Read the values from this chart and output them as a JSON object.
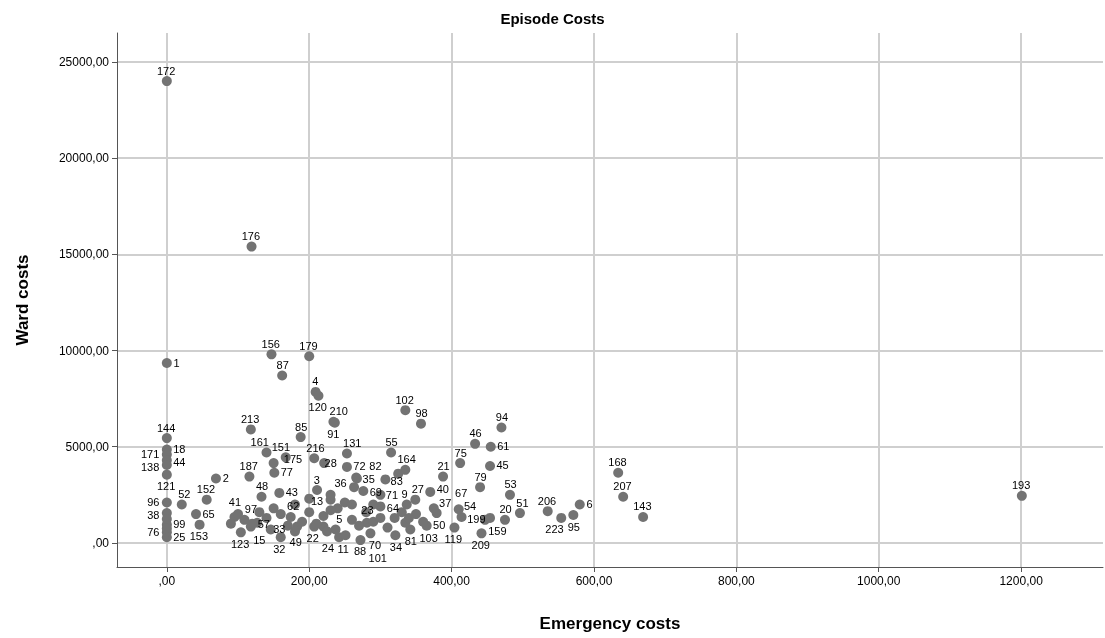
{
  "chart_data": {
    "type": "scatter",
    "title": "Episode Costs",
    "xlabel": "Emergency costs",
    "ylabel": "Ward costs",
    "xlim": [
      -70,
      1315
    ],
    "ylim": [
      -1250,
      26500
    ],
    "xticks": [
      {
        "value": 0,
        "label": ",00"
      },
      {
        "value": 200,
        "label": "200,00"
      },
      {
        "value": 400,
        "label": "400,00"
      },
      {
        "value": 600,
        "label": "600,00"
      },
      {
        "value": 800,
        "label": "800,00"
      },
      {
        "value": 1000,
        "label": "1000,00"
      },
      {
        "value": 1200,
        "label": "1200,00"
      }
    ],
    "yticks": [
      {
        "value": 0,
        "label": ",00"
      },
      {
        "value": 5000,
        "label": "5000,00"
      },
      {
        "value": 10000,
        "label": "10000,00"
      },
      {
        "value": 15000,
        "label": "15000,00"
      },
      {
        "value": 20000,
        "label": "20000,00"
      },
      {
        "value": 25000,
        "label": "25000,00"
      }
    ],
    "grid": true,
    "marker": "circle",
    "series": [
      {
        "color": "#737373",
        "x": [
          0,
          119,
          0,
          147,
          200,
          162,
          209,
          213,
          335,
          357,
          470,
          118,
          234,
          236,
          0,
          0,
          0,
          0,
          0,
          0,
          0,
          0,
          0,
          0,
          0,
          0,
          0,
          188,
          69,
          56,
          21,
          41,
          46,
          116,
          150,
          151,
          140,
          167,
          207,
          221,
          253,
          266,
          263,
          158,
          133,
          211,
          230,
          174,
          104,
          118,
          160,
          95,
          109,
          127,
          146,
          183,
          207,
          220,
          237,
          242,
          251,
          286,
          272,
          281,
          321,
          342,
          365,
          335,
          337,
          379,
          414,
          404,
          475,
          410,
          349,
          370,
          440,
          454,
          447,
          496,
          482,
          454,
          433,
          455,
          412,
          388,
          335,
          325,
          315,
          253,
          267,
          307,
          276,
          300,
          442,
          634,
          641,
          669,
          580,
          571,
          535,
          554,
          1201,
          150,
          180,
          200,
          220,
          240,
          260,
          280,
          300,
          320,
          190,
          210,
          230,
          250,
          270,
          290,
          310,
          170,
          140,
          130,
          160,
          200,
          230,
          260,
          350,
          360,
          290,
          330,
          120,
          100,
          90,
          180,
          225,
          300,
          340,
          375
        ],
        "values": [
          24000,
          15400,
          9350,
          9800,
          9700,
          8700,
          7850,
          7650,
          6900,
          6200,
          6000,
          5900,
          6300,
          6250,
          5450,
          4850,
          4600,
          4300,
          4050,
          3550,
          2100,
          1550,
          950,
          300,
          550,
          1250,
          750,
          5500,
          3350,
          2250,
          2000,
          1500,
          950,
          3450,
          4150,
          3650,
          4700,
          4450,
          4400,
          4150,
          3950,
          3400,
          2900,
          2600,
          2400,
          2750,
          2250,
          1350,
          550,
          850,
          300,
          1350,
          1200,
          1050,
          700,
          850,
          850,
          850,
          700,
          300,
          400,
          500,
          150,
          1050,
          400,
          700,
          900,
          1050,
          2000,
          1550,
          1350,
          800,
          1200,
          1750,
          2250,
          2650,
          2900,
          1300,
          1200,
          1550,
          2500,
          4000,
          5150,
          5000,
          4150,
          3450,
          3800,
          3600,
          4700,
          4650,
          3350,
          3300,
          2700,
          2500,
          500,
          3650,
          2400,
          1350,
          2000,
          1450,
          1650,
          1300,
          2450,
          1800,
          2000,
          1600,
          1400,
          1800,
          1200,
          1600,
          1900,
          1300,
          1100,
          1000,
          1700,
          2100,
          900,
          1100,
          800,
          900,
          1300,
          1600,
          1500,
          2300,
          2500,
          2000,
          1500,
          1100,
          2000,
          1600,
          1000,
          1500,
          1000,
          600,
          600,
          1300,
          1300,
          1800
        ]
      }
    ],
    "annotations": [
      {
        "text": "172",
        "x": 0,
        "y": 24000
      },
      {
        "text": "176",
        "x": 119,
        "y": 15400
      },
      {
        "text": "1",
        "x": 0,
        "y": 9350
      },
      {
        "text": "156",
        "x": 147,
        "y": 9800
      },
      {
        "text": "179",
        "x": 200,
        "y": 9700
      },
      {
        "text": "87",
        "x": 162,
        "y": 8700
      },
      {
        "text": "4",
        "x": 209,
        "y": 7850
      },
      {
        "text": "120",
        "x": 213,
        "y": 7650
      },
      {
        "text": "102",
        "x": 335,
        "y": 6900
      },
      {
        "text": "98",
        "x": 357,
        "y": 6200
      },
      {
        "text": "94",
        "x": 470,
        "y": 6000
      },
      {
        "text": "213",
        "x": 118,
        "y": 5900
      },
      {
        "text": "210",
        "x": 234,
        "y": 6300
      },
      {
        "text": "91",
        "x": 236,
        "y": 6250
      },
      {
        "text": "144",
        "x": 0,
        "y": 5450
      },
      {
        "text": "18",
        "x": 0,
        "y": 4850
      },
      {
        "text": "171",
        "x": 0,
        "y": 4600
      },
      {
        "text": "44",
        "x": 0,
        "y": 4300
      },
      {
        "text": "138",
        "x": 0,
        "y": 4050
      },
      {
        "text": "121",
        "x": 0,
        "y": 3550
      },
      {
        "text": "96",
        "x": 0,
        "y": 2100
      },
      {
        "text": "38",
        "x": 0,
        "y": 1550
      },
      {
        "text": "99",
        "x": 0,
        "y": 950
      },
      {
        "text": "25",
        "x": 0,
        "y": 300
      },
      {
        "text": "76",
        "x": 0,
        "y": 550
      },
      {
        "text": "85",
        "x": 188,
        "y": 5500
      },
      {
        "text": "2",
        "x": 69,
        "y": 3350
      },
      {
        "text": "152",
        "x": 56,
        "y": 2250
      },
      {
        "text": "52",
        "x": 21,
        "y": 2000
      },
      {
        "text": "65",
        "x": 41,
        "y": 1500
      },
      {
        "text": "153",
        "x": 46,
        "y": 950
      },
      {
        "text": "187",
        "x": 116,
        "y": 3450
      },
      {
        "text": "151",
        "x": 150,
        "y": 4150
      },
      {
        "text": "77",
        "x": 151,
        "y": 3650
      },
      {
        "text": "161",
        "x": 140,
        "y": 4700
      },
      {
        "text": "175",
        "x": 167,
        "y": 4450
      },
      {
        "text": "216",
        "x": 207,
        "y": 4400
      },
      {
        "text": "28",
        "x": 221,
        "y": 4150
      },
      {
        "text": "72",
        "x": 253,
        "y": 3950
      },
      {
        "text": "35",
        "x": 266,
        "y": 3400
      },
      {
        "text": "36",
        "x": 263,
        "y": 2900
      },
      {
        "text": "43",
        "x": 158,
        "y": 2600
      },
      {
        "text": "48",
        "x": 133,
        "y": 2400
      },
      {
        "text": "3",
        "x": 211,
        "y": 2750
      },
      {
        "text": "13",
        "x": 230,
        "y": 2250
      },
      {
        "text": "62",
        "x": 174,
        "y": 1350
      },
      {
        "text": "123",
        "x": 104,
        "y": 550
      },
      {
        "text": "15",
        "x": 118,
        "y": 850
      },
      {
        "text": "32",
        "x": 160,
        "y": 300
      },
      {
        "text": "41",
        "x": 95,
        "y": 1350
      },
      {
        "text": "97",
        "x": 109,
        "y": 1200
      },
      {
        "text": "57",
        "x": 127,
        "y": 1050
      },
      {
        "text": "33",
        "x": 146,
        "y": 700
      },
      {
        "text": "49",
        "x": 183,
        "y": 850
      },
      {
        "text": "22",
        "x": 207,
        "y": 850
      },
      {
        "text": "24",
        "x": 220,
        "y": 850
      },
      {
        "text": "5",
        "x": 237,
        "y": 700
      },
      {
        "text": "11",
        "x": 242,
        "y": 300
      },
      {
        "text": "88",
        "x": 251,
        "y": 400
      },
      {
        "text": "70",
        "x": 286,
        "y": 500
      },
      {
        "text": "101",
        "x": 272,
        "y": 150
      },
      {
        "text": "23",
        "x": 281,
        "y": 1050
      },
      {
        "text": "34",
        "x": 321,
        "y": 400
      },
      {
        "text": "81",
        "x": 342,
        "y": 700
      },
      {
        "text": "50",
        "x": 365,
        "y": 900
      },
      {
        "text": "103",
        "x": 335,
        "y": 1050
      },
      {
        "text": "9",
        "x": 337,
        "y": 2000
      },
      {
        "text": "37",
        "x": 379,
        "y": 1550
      },
      {
        "text": "54",
        "x": 414,
        "y": 1350
      },
      {
        "text": "119",
        "x": 404,
        "y": 800
      },
      {
        "text": "20",
        "x": 475,
        "y": 1200
      },
      {
        "text": "67",
        "x": 410,
        "y": 1750
      },
      {
        "text": "27",
        "x": 349,
        "y": 2250
      },
      {
        "text": "40",
        "x": 370,
        "y": 2650
      },
      {
        "text": "79",
        "x": 440,
        "y": 2900
      },
      {
        "text": "159",
        "x": 454,
        "y": 1300
      },
      {
        "text": "199",
        "x": 447,
        "y": 1200
      },
      {
        "text": "51",
        "x": 496,
        "y": 1550
      },
      {
        "text": "53",
        "x": 482,
        "y": 2500
      },
      {
        "text": "45",
        "x": 454,
        "y": 4000
      },
      {
        "text": "46",
        "x": 433,
        "y": 5150
      },
      {
        "text": "61",
        "x": 455,
        "y": 5000
      },
      {
        "text": "75",
        "x": 412,
        "y": 4150
      },
      {
        "text": "21",
        "x": 388,
        "y": 3450
      },
      {
        "text": "164",
        "x": 335,
        "y": 3800
      },
      {
        "text": "83",
        "x": 325,
        "y": 3600
      },
      {
        "text": "55",
        "x": 315,
        "y": 4700
      },
      {
        "text": "131",
        "x": 253,
        "y": 4650
      },
      {
        "text": "82",
        "x": 267,
        "y": 3350
      },
      {
        "text": "71",
        "x": 307,
        "y": 3300
      },
      {
        "text": "69",
        "x": 276,
        "y": 2700
      },
      {
        "text": "64",
        "x": 300,
        "y": 2500
      },
      {
        "text": "209",
        "x": 442,
        "y": 500
      },
      {
        "text": "168",
        "x": 634,
        "y": 3650
      },
      {
        "text": "207",
        "x": 641,
        "y": 2400
      },
      {
        "text": "143",
        "x": 669,
        "y": 1350
      },
      {
        "text": "6",
        "x": 580,
        "y": 2000
      },
      {
        "text": "95",
        "x": 571,
        "y": 1450
      },
      {
        "text": "206",
        "x": 535,
        "y": 1650
      },
      {
        "text": "223",
        "x": 554,
        "y": 1300
      },
      {
        "text": "193",
        "x": 1201,
        "y": 2450
      }
    ]
  }
}
